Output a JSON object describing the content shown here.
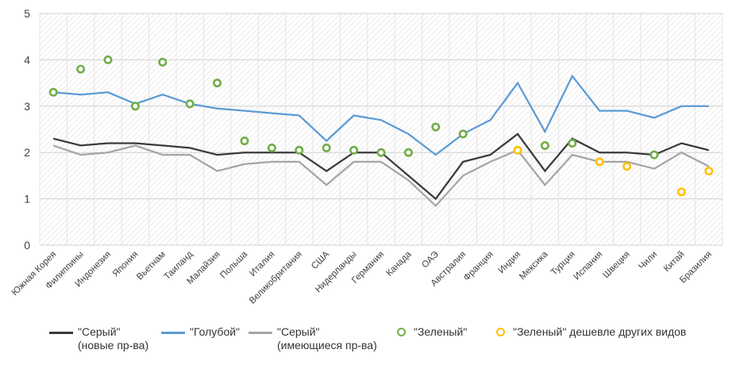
{
  "chart_data": {
    "type": "line",
    "title": "",
    "xlabel": "",
    "ylabel": "",
    "ylim": [
      0,
      5
    ],
    "yticks": [
      0,
      1,
      2,
      3,
      4,
      5
    ],
    "categories": [
      "Южная Корея",
      "Филиппины",
      "Индонезия",
      "Япония",
      "Вьетнам",
      "Таиланд",
      "Малайзия",
      "Польша",
      "Италия",
      "Великобритания",
      "США",
      "Нидерланды",
      "Германия",
      "Канада",
      "ОАЭ",
      "Австралия",
      "Франция",
      "Индия",
      "Мексика",
      "Турция",
      "Испания",
      "Швеция",
      "Чили",
      "Китай",
      "Бразилия"
    ],
    "series": [
      {
        "name": "\"Серый\" (новые пр-ва)",
        "label_lines": [
          "\"Серый\"",
          "(новые пр-ва)"
        ],
        "kind": "line",
        "color": "#3a3a3a",
        "values": [
          2.3,
          2.15,
          2.2,
          2.2,
          2.15,
          2.1,
          1.95,
          2.0,
          2.0,
          2.0,
          1.6,
          2.0,
          2.0,
          1.5,
          1.0,
          1.8,
          1.95,
          2.4,
          1.6,
          2.3,
          2.0,
          2.0,
          1.95,
          2.2,
          2.05
        ]
      },
      {
        "name": "\"Голубой\"",
        "label_lines": [
          "\"Голубой\""
        ],
        "kind": "line",
        "color": "#5b9bd5",
        "values": [
          3.3,
          3.25,
          3.3,
          3.05,
          3.25,
          3.05,
          2.95,
          2.9,
          2.85,
          2.8,
          2.25,
          2.8,
          2.7,
          2.4,
          1.95,
          2.4,
          2.7,
          3.5,
          2.45,
          3.65,
          2.9,
          2.9,
          2.75,
          3.0,
          3.0
        ]
      },
      {
        "name": "\"Серый\" (имеющиеся пр-ва)",
        "label_lines": [
          "\"Серый\"",
          "(имеющиеся пр-ва)"
        ],
        "kind": "line",
        "color": "#a5a5a5",
        "values": [
          2.15,
          1.95,
          2.0,
          2.15,
          1.95,
          1.95,
          1.6,
          1.75,
          1.8,
          1.8,
          1.3,
          1.8,
          1.8,
          1.4,
          0.85,
          1.5,
          1.8,
          2.05,
          1.3,
          1.95,
          1.8,
          1.8,
          1.65,
          2.0,
          1.7
        ]
      },
      {
        "name": "\"Зеленый\"",
        "label_lines": [
          "\"Зеленый\""
        ],
        "kind": "marker",
        "color": "#70ad47",
        "values": [
          3.3,
          3.8,
          4.0,
          3.0,
          3.95,
          3.05,
          3.5,
          2.25,
          2.1,
          2.05,
          2.1,
          2.05,
          2.0,
          2.0,
          2.55,
          2.4,
          null,
          null,
          2.15,
          2.2,
          null,
          null,
          1.95,
          null,
          null
        ]
      },
      {
        "name": "\"Зеленый\" дешевле других видов",
        "label_lines": [
          "\"Зеленый\" дешевле других видов"
        ],
        "kind": "marker",
        "color": "#ffc000",
        "values": [
          null,
          null,
          null,
          null,
          null,
          null,
          null,
          null,
          null,
          null,
          null,
          null,
          null,
          null,
          null,
          null,
          null,
          2.05,
          null,
          null,
          1.8,
          1.7,
          null,
          1.15,
          1.6
        ]
      }
    ],
    "grid": "horizontal",
    "background": "diagonal-hatch",
    "legend_position": "bottom"
  }
}
